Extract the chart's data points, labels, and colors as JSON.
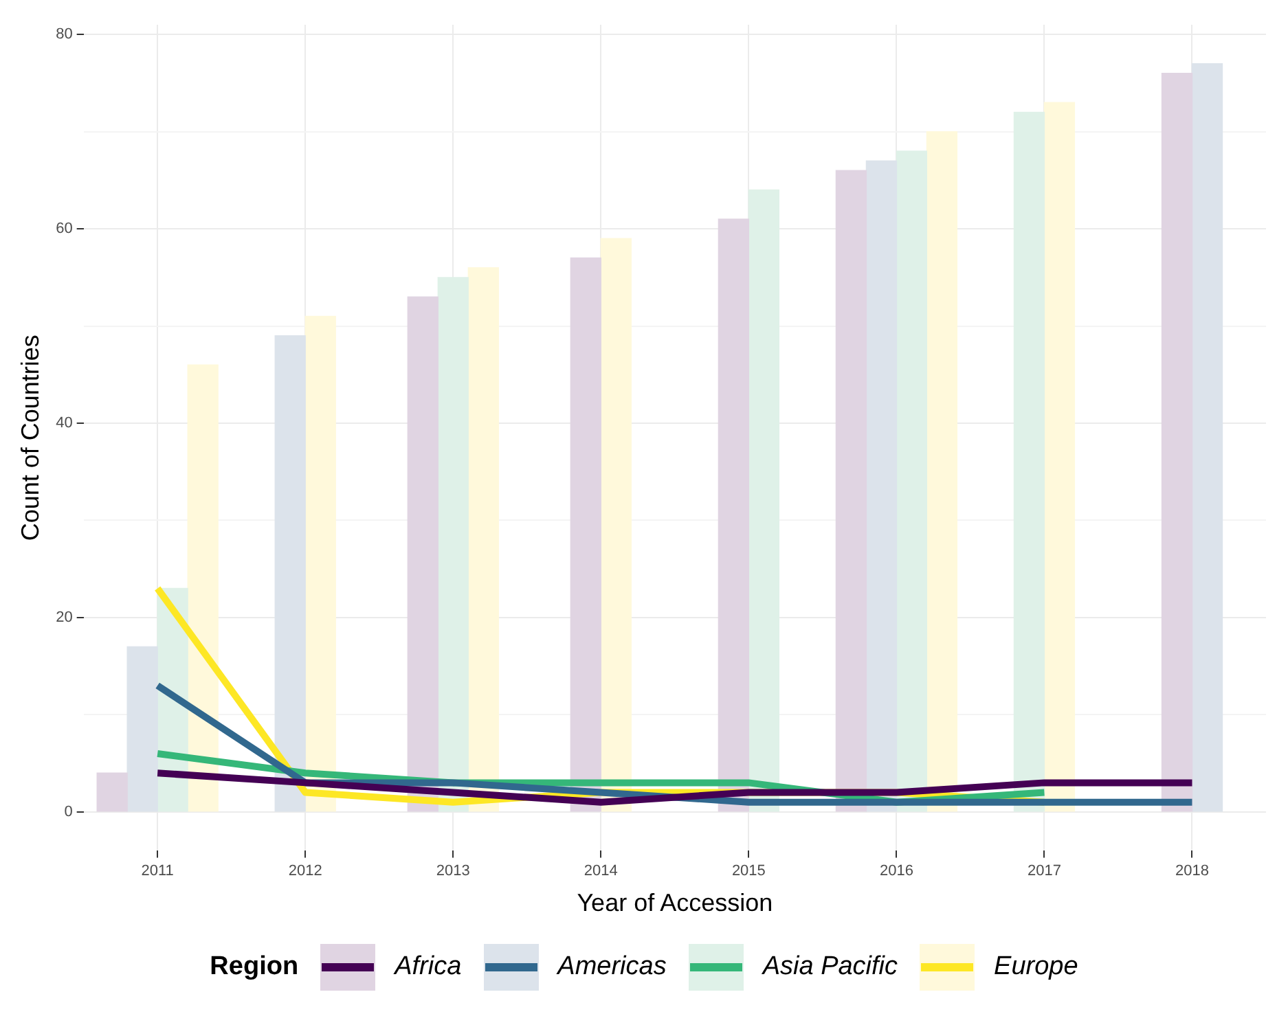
{
  "chart_data": {
    "type": "bar",
    "xlabel": "Year of Accession",
    "ylabel": "Count of Countries",
    "legend_title": "Region",
    "legend": "bottom",
    "grid": true,
    "marker": "none",
    "categories": [
      "2011",
      "2012",
      "2013",
      "2014",
      "2015",
      "2016",
      "2017",
      "2018"
    ],
    "ylim": [
      -4,
      81
    ],
    "yticks": [
      0,
      {
        "value": 10,
        "label": null
      },
      20,
      {
        "value": 30,
        "label": null
      },
      40,
      {
        "value": 50,
        "label": null
      },
      60,
      {
        "value": 70,
        "label": null
      },
      80
    ],
    "series": [
      {
        "name": "Africa",
        "color": "#e0d4e2",
        "values": [
          4,
          null,
          53,
          57,
          61,
          66,
          null,
          76
        ]
      },
      {
        "name": "Americas",
        "color": "#dce3eb",
        "values": [
          17,
          49,
          null,
          null,
          null,
          67,
          null,
          77
        ]
      },
      {
        "name": "Asia Pacific",
        "color": "#dff1e8",
        "values": [
          23,
          null,
          55,
          null,
          64,
          68,
          72,
          null
        ]
      },
      {
        "name": "Europe",
        "color": "#fff9db",
        "values": [
          46,
          51,
          56,
          59,
          null,
          70,
          73,
          null
        ]
      },
      {
        "type": "line",
        "color": "#440154",
        "values": [
          4,
          3,
          2,
          1,
          2,
          2,
          3,
          3
        ]
      },
      {
        "type": "line",
        "color": "#31688e",
        "values": [
          13,
          3,
          3,
          2,
          1,
          1,
          1,
          1
        ]
      },
      {
        "type": "line",
        "color": "#35b779",
        "values": [
          6,
          4,
          3,
          3,
          3,
          1,
          2,
          null
        ]
      },
      {
        "type": "line",
        "color": "#fde725",
        "values": [
          23,
          2,
          1,
          2,
          2,
          2,
          1,
          null
        ]
      }
    ]
  }
}
